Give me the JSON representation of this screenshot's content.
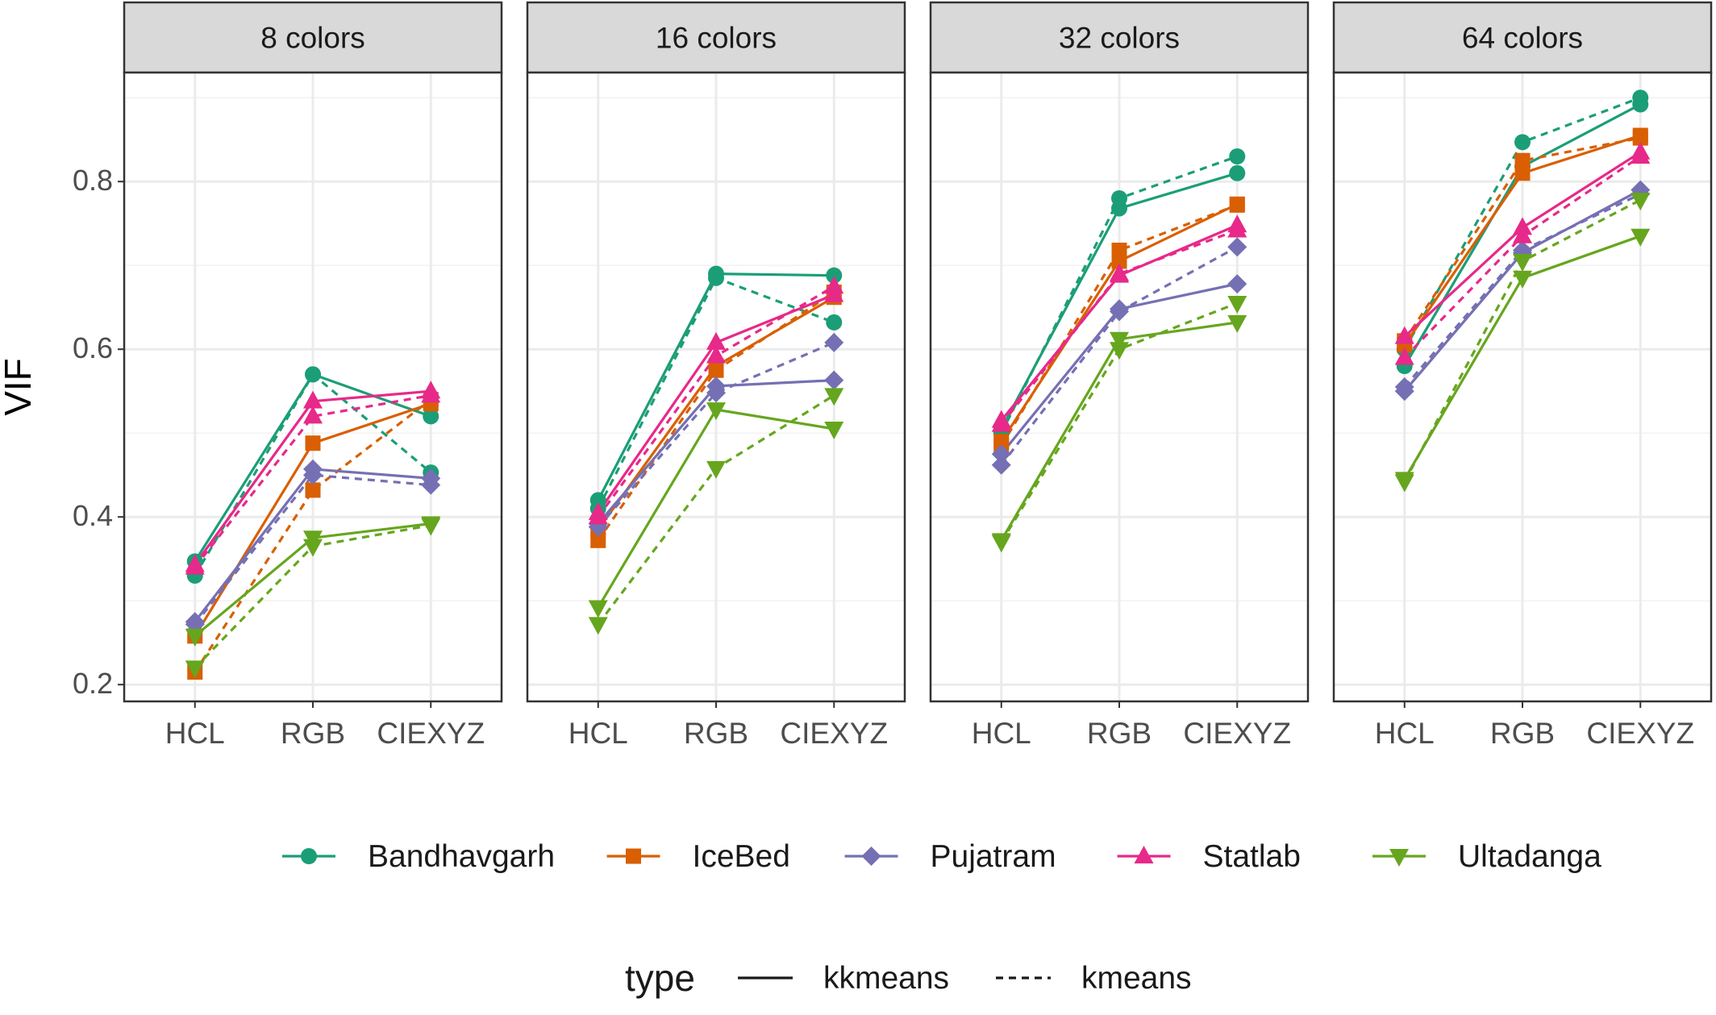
{
  "chart_data": {
    "type": "line",
    "ylabel": "VIF",
    "xlabel": "",
    "categories": [
      "HCL",
      "RGB",
      "CIEXYZ"
    ],
    "ylim": [
      0.18,
      0.93
    ],
    "yticks": [
      0.2,
      0.4,
      0.6,
      0.8
    ],
    "ytick_labels": [
      "0.2",
      "0.4",
      "0.6",
      "0.8"
    ],
    "grid": true,
    "legend_position": "bottom",
    "facets": [
      "8 colors",
      "16 colors",
      "32 colors",
      "64 colors"
    ],
    "groups": [
      {
        "name": "Bandhavgarh",
        "color": "#1B9E77",
        "marker": "circle"
      },
      {
        "name": "IceBed",
        "color": "#D95F02",
        "marker": "square"
      },
      {
        "name": "Pujatram",
        "color": "#7570B3",
        "marker": "diamond"
      },
      {
        "name": "Statlab",
        "color": "#E7298A",
        "marker": "triangle-up"
      },
      {
        "name": "Ultadanga",
        "color": "#66A61E",
        "marker": "triangle-down"
      }
    ],
    "type_legend": {
      "title": "type",
      "items": [
        {
          "name": "kkmeans",
          "linestyle": "solid"
        },
        {
          "name": "kmeans",
          "linestyle": "dashed"
        }
      ]
    },
    "series": [
      {
        "facet": "8 colors",
        "name": "Bandhavgarh",
        "type": "kkmeans",
        "values": [
          0.347,
          0.57,
          0.52
        ]
      },
      {
        "facet": "8 colors",
        "name": "Bandhavgarh",
        "type": "kmeans",
        "values": [
          0.33,
          0.57,
          0.453
        ]
      },
      {
        "facet": "8 colors",
        "name": "IceBed",
        "type": "kkmeans",
        "values": [
          0.258,
          0.488,
          0.535
        ]
      },
      {
        "facet": "8 colors",
        "name": "IceBed",
        "type": "kmeans",
        "values": [
          0.215,
          0.432,
          0.54
        ]
      },
      {
        "facet": "8 colors",
        "name": "Pujatram",
        "type": "kkmeans",
        "values": [
          0.275,
          0.457,
          0.446
        ]
      },
      {
        "facet": "8 colors",
        "name": "Pujatram",
        "type": "kmeans",
        "values": [
          0.272,
          0.45,
          0.438
        ]
      },
      {
        "facet": "8 colors",
        "name": "Statlab",
        "type": "kkmeans",
        "values": [
          0.343,
          0.538,
          0.55
        ]
      },
      {
        "facet": "8 colors",
        "name": "Statlab",
        "type": "kmeans",
        "values": [
          0.34,
          0.52,
          0.545
        ]
      },
      {
        "facet": "8 colors",
        "name": "Ultadanga",
        "type": "kkmeans",
        "values": [
          0.258,
          0.375,
          0.392
        ]
      },
      {
        "facet": "8 colors",
        "name": "Ultadanga",
        "type": "kmeans",
        "values": [
          0.22,
          0.365,
          0.39
        ]
      },
      {
        "facet": "16 colors",
        "name": "Bandhavgarh",
        "type": "kkmeans",
        "values": [
          0.42,
          0.69,
          0.688
        ]
      },
      {
        "facet": "16 colors",
        "name": "Bandhavgarh",
        "type": "kmeans",
        "values": [
          0.41,
          0.685,
          0.632
        ]
      },
      {
        "facet": "16 colors",
        "name": "IceBed",
        "type": "kkmeans",
        "values": [
          0.385,
          0.58,
          0.662
        ]
      },
      {
        "facet": "16 colors",
        "name": "IceBed",
        "type": "kmeans",
        "values": [
          0.372,
          0.575,
          0.668
        ]
      },
      {
        "facet": "16 colors",
        "name": "Pujatram",
        "type": "kkmeans",
        "values": [
          0.392,
          0.556,
          0.563
        ]
      },
      {
        "facet": "16 colors",
        "name": "Pujatram",
        "type": "kmeans",
        "values": [
          0.388,
          0.548,
          0.608
        ]
      },
      {
        "facet": "16 colors",
        "name": "Statlab",
        "type": "kkmeans",
        "values": [
          0.405,
          0.608,
          0.665
        ]
      },
      {
        "facet": "16 colors",
        "name": "Statlab",
        "type": "kmeans",
        "values": [
          0.4,
          0.592,
          0.675
        ]
      },
      {
        "facet": "16 colors",
        "name": "Ultadanga",
        "type": "kkmeans",
        "values": [
          0.292,
          0.528,
          0.505
        ]
      },
      {
        "facet": "16 colors",
        "name": "Ultadanga",
        "type": "kmeans",
        "values": [
          0.272,
          0.458,
          0.545
        ]
      },
      {
        "facet": "32 colors",
        "name": "Bandhavgarh",
        "type": "kkmeans",
        "values": [
          0.505,
          0.768,
          0.81
        ]
      },
      {
        "facet": "32 colors",
        "name": "Bandhavgarh",
        "type": "kmeans",
        "values": [
          0.5,
          0.78,
          0.83
        ]
      },
      {
        "facet": "32 colors",
        "name": "IceBed",
        "type": "kkmeans",
        "values": [
          0.49,
          0.705,
          0.773
        ]
      },
      {
        "facet": "32 colors",
        "name": "IceBed",
        "type": "kmeans",
        "values": [
          0.485,
          0.718,
          0.772
        ]
      },
      {
        "facet": "32 colors",
        "name": "Pujatram",
        "type": "kkmeans",
        "values": [
          0.475,
          0.648,
          0.678
        ]
      },
      {
        "facet": "32 colors",
        "name": "Pujatram",
        "type": "kmeans",
        "values": [
          0.462,
          0.645,
          0.722
        ]
      },
      {
        "facet": "32 colors",
        "name": "Statlab",
        "type": "kkmeans",
        "values": [
          0.515,
          0.688,
          0.748
        ]
      },
      {
        "facet": "32 colors",
        "name": "Statlab",
        "type": "kmeans",
        "values": [
          0.51,
          0.69,
          0.742
        ]
      },
      {
        "facet": "32 colors",
        "name": "Ultadanga",
        "type": "kkmeans",
        "values": [
          0.372,
          0.612,
          0.632
        ]
      },
      {
        "facet": "32 colors",
        "name": "Ultadanga",
        "type": "kmeans",
        "values": [
          0.37,
          0.6,
          0.655
        ]
      },
      {
        "facet": "64 colors",
        "name": "Bandhavgarh",
        "type": "kkmeans",
        "values": [
          0.58,
          0.818,
          0.892
        ]
      },
      {
        "facet": "64 colors",
        "name": "Bandhavgarh",
        "type": "kmeans",
        "values": [
          0.6,
          0.847,
          0.9
        ]
      },
      {
        "facet": "64 colors",
        "name": "IceBed",
        "type": "kkmeans",
        "values": [
          0.605,
          0.81,
          0.855
        ]
      },
      {
        "facet": "64 colors",
        "name": "IceBed",
        "type": "kmeans",
        "values": [
          0.61,
          0.825,
          0.852
        ]
      },
      {
        "facet": "64 colors",
        "name": "Pujatram",
        "type": "kkmeans",
        "values": [
          0.55,
          0.715,
          0.79
        ]
      },
      {
        "facet": "64 colors",
        "name": "Pujatram",
        "type": "kmeans",
        "values": [
          0.555,
          0.718,
          0.785
        ]
      },
      {
        "facet": "64 colors",
        "name": "Statlab",
        "type": "kkmeans",
        "values": [
          0.615,
          0.745,
          0.835
        ]
      },
      {
        "facet": "64 colors",
        "name": "Statlab",
        "type": "kmeans",
        "values": [
          0.59,
          0.735,
          0.83
        ]
      },
      {
        "facet": "64 colors",
        "name": "Ultadanga",
        "type": "kkmeans",
        "values": [
          0.445,
          0.685,
          0.735
        ]
      },
      {
        "facet": "64 colors",
        "name": "Ultadanga",
        "type": "kmeans",
        "values": [
          0.442,
          0.705,
          0.778
        ]
      }
    ]
  }
}
